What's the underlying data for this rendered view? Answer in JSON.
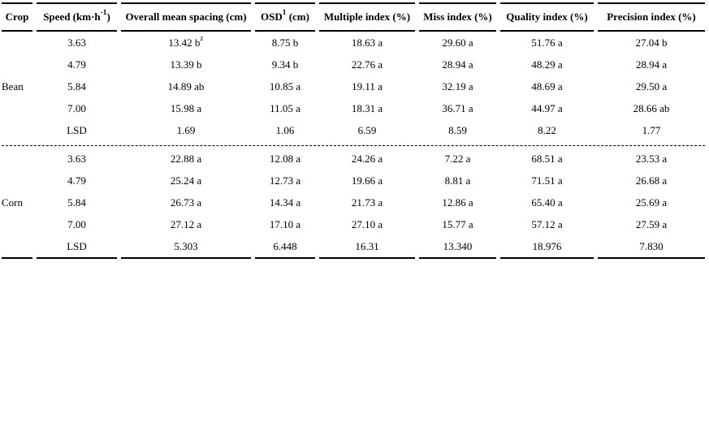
{
  "table": {
    "headers": [
      {
        "label": "Crop"
      },
      {
        "label": "Speed (km·h^{-1})"
      },
      {
        "label": "Overall mean spacing (cm)"
      },
      {
        "label": "OSD^{1} (cm)"
      },
      {
        "label": "Multiple index (%)"
      },
      {
        "label": "Miss index (%)"
      },
      {
        "label": "Quality index (%)"
      },
      {
        "label": "Precision index (%)"
      }
    ],
    "groups": [
      {
        "crop": "Bean",
        "rows": [
          {
            "speed": "3.63",
            "values": [
              "13.42 b^{z}",
              "8.75 b",
              "18.63 a",
              "29.60 a",
              "51.76 a",
              "27.04 b"
            ]
          },
          {
            "speed": "4.79",
            "values": [
              "13.39 b",
              "9.34 b",
              "22.76 a",
              "28.94 a",
              "48.29 a",
              "28.94 a"
            ]
          },
          {
            "speed": "5.84",
            "values": [
              "14.89 ab",
              "10.85 a",
              "19.11 a",
              "32.19 a",
              "48.69 a",
              "29.50 a"
            ]
          },
          {
            "speed": "7.00",
            "values": [
              "15.98 a",
              "11.05 a",
              "18.31 a",
              "36.71 a",
              "44.97 a",
              "28.66 ab"
            ]
          },
          {
            "speed": "LSD",
            "values": [
              "1.69",
              "1.06",
              "6.59",
              "8.59",
              "8.22",
              "1.77"
            ]
          }
        ]
      },
      {
        "crop": "Corn",
        "rows": [
          {
            "speed": "3.63",
            "values": [
              "22.88 a",
              "12.08 a",
              "24.26 a",
              "7.22 a",
              "68.51 a",
              "23.53 a"
            ]
          },
          {
            "speed": "4.79",
            "values": [
              "25.24 a",
              "12.73 a",
              "19.66 a",
              "8.81 a",
              "71.51 a",
              "26.68 a"
            ]
          },
          {
            "speed": "5.84",
            "values": [
              "26.73 a",
              "14.34 a",
              "21.73 a",
              "12.86 a",
              "65.40 a",
              "25.69 a"
            ]
          },
          {
            "speed": "7.00",
            "values": [
              "27.12 a",
              "17.10 a",
              "27.10 a",
              "15.77 a",
              "57.12 a",
              "27.59 a"
            ]
          },
          {
            "speed": "LSD",
            "values": [
              "5.303",
              "6.448",
              "16.31",
              "13.340",
              "18.976",
              "7.830"
            ]
          }
        ]
      }
    ],
    "colors": {
      "text": "#000000",
      "border": "#000000",
      "background": "#ffffff"
    }
  }
}
